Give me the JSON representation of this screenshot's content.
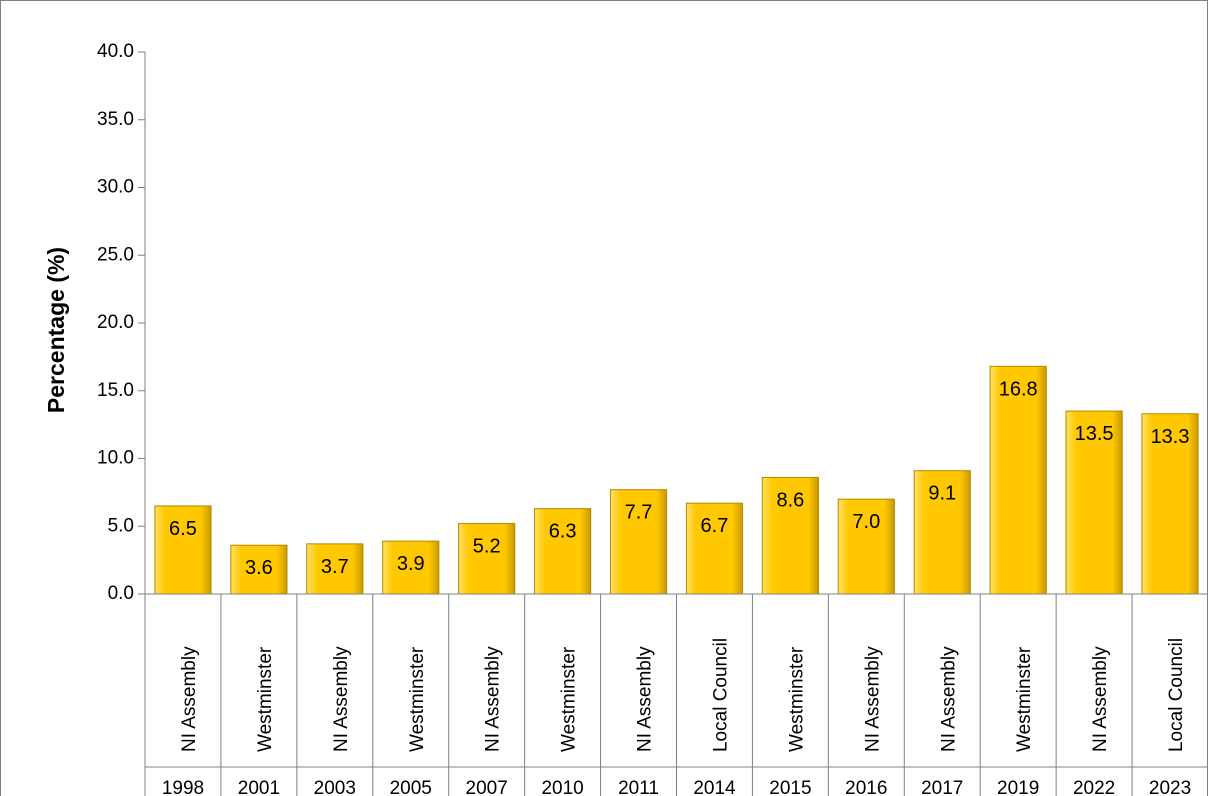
{
  "chart_data": {
    "type": "bar",
    "ylabel": "Percentage (%)",
    "xlabel": "",
    "ylim": [
      0,
      40
    ],
    "y_ticks": [
      "0.0",
      "5.0",
      "10.0",
      "15.0",
      "20.0",
      "25.0",
      "30.0",
      "35.0",
      "40.0"
    ],
    "grid": false,
    "legend": "none",
    "categories": [
      {
        "election": "NI Assembly",
        "year": "1998"
      },
      {
        "election": "Westminster",
        "year": "2001"
      },
      {
        "election": "NI Assembly",
        "year": "2003"
      },
      {
        "election": "Westminster",
        "year": "2005"
      },
      {
        "election": "NI Assembly",
        "year": "2007"
      },
      {
        "election": "Westminster",
        "year": "2010"
      },
      {
        "election": "NI Assembly",
        "year": "2011"
      },
      {
        "election": "Local Council",
        "year": "2014"
      },
      {
        "election": "Westminster",
        "year": "2015"
      },
      {
        "election": "NI Assembly",
        "year": "2016"
      },
      {
        "election": "NI Assembly",
        "year": "2017"
      },
      {
        "election": "Westminster",
        "year": "2019"
      },
      {
        "election": "NI Assembly",
        "year": "2022"
      },
      {
        "election": "Local Council",
        "year": "2023"
      }
    ],
    "values": [
      6.5,
      3.6,
      3.7,
      3.9,
      5.2,
      6.3,
      7.7,
      6.7,
      8.6,
      7.0,
      9.1,
      16.8,
      13.5,
      13.3
    ],
    "data_labels": [
      "6.5",
      "3.6",
      "3.7",
      "3.9",
      "5.2",
      "6.3",
      "7.7",
      "6.7",
      "8.6",
      "7.0",
      "9.1",
      "16.8",
      "13.5",
      "13.3"
    ],
    "colors": {
      "bar_light": "#FFE066",
      "bar_main": "#FFC800",
      "bar_dark": "#C99A00",
      "bar_edge": "#B58900",
      "axis": "#808080",
      "border": "#808080"
    }
  }
}
